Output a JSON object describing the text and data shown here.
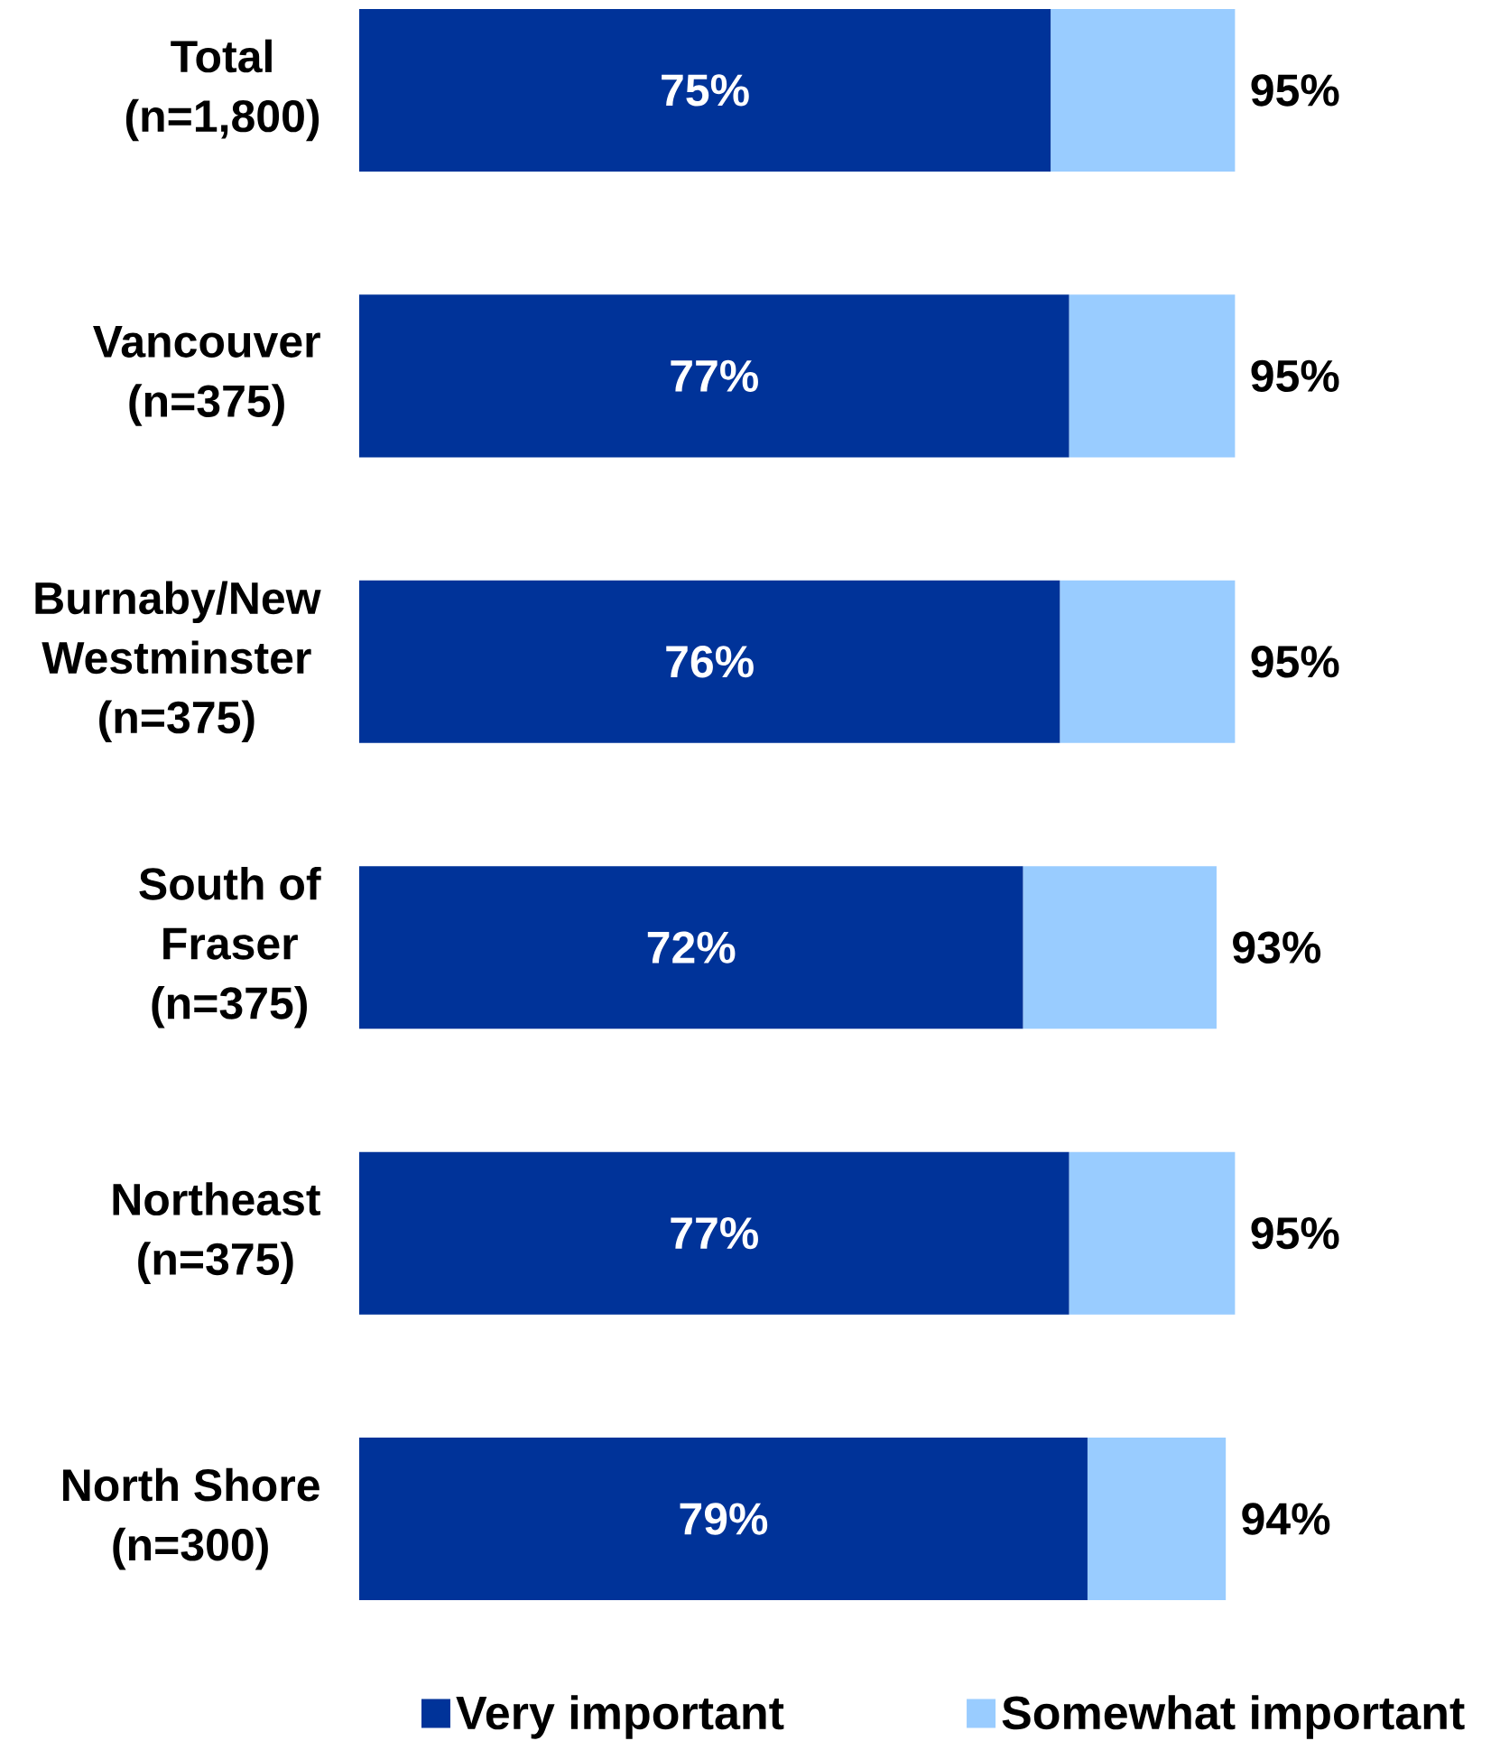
{
  "chart_data": {
    "type": "bar",
    "orientation": "horizontal",
    "stacked": true,
    "categories": [
      "Total\n(n=1,800)",
      "Vancouver\n(n=375)",
      "Burnaby/New\nWestminster\n(n=375)",
      "South of\nFraser\n(n=375)",
      "Northeast\n(n=375)",
      "North Shore\n(n=300)"
    ],
    "series": [
      {
        "name": "Very important",
        "color": "#003399",
        "values": [
          75,
          77,
          76,
          72,
          77,
          79
        ],
        "value_labels": [
          "75%",
          "77%",
          "76%",
          "72%",
          "77%",
          "79%"
        ]
      },
      {
        "name": "Somewhat important",
        "color": "#99CCFF",
        "values": [
          20,
          18,
          19,
          21,
          18,
          15
        ]
      }
    ],
    "totals": [
      "95%",
      "95%",
      "95%",
      "93%",
      "95%",
      "94%"
    ],
    "tick_labels": "y",
    "legend": "bottom"
  }
}
